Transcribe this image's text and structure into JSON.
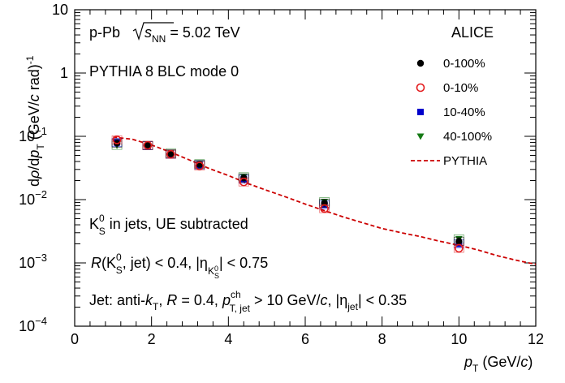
{
  "chart_data": {
    "type": "scatter",
    "x_scale": "linear",
    "y_scale": "log",
    "xlim": [
      0,
      12
    ],
    "ylim": [
      0.0001,
      10
    ],
    "x_ticks": [
      0,
      2,
      4,
      6,
      8,
      10,
      12
    ],
    "y_ticks": [
      {
        "value": 10,
        "base": "10",
        "exp": ""
      },
      {
        "value": 1,
        "base": "1",
        "exp": ""
      },
      {
        "value": 0.1,
        "base": "10",
        "exp": "−1"
      },
      {
        "value": 0.01,
        "base": "10",
        "exp": "−2"
      },
      {
        "value": 0.001,
        "base": "10",
        "exp": "−3"
      },
      {
        "value": 0.0001,
        "base": "10",
        "exp": "−4"
      }
    ],
    "xlabel": {
      "main": "p",
      "sub": "T",
      "unit_pre": " (GeV/",
      "unit_it": "c",
      "unit_post": ")"
    },
    "ylabel": {
      "t1": "d",
      "t2": "ρ",
      "t3": "/d",
      "t4": "p",
      "t4sub": "T",
      "t5": " (GeV/",
      "t6": "c",
      "t7": " rad)",
      "t7sup": "-1"
    },
    "experiment": "ALICE",
    "annotations": {
      "system": {
        "pre": "p-Pb ",
        "sqrt": "s",
        "sqrt_sub": "NN",
        "post": " = 5.02 TeV"
      },
      "model": "PYTHIA 8 BLC mode 0",
      "k0s": {
        "a": "K",
        "sup": "0",
        "sub": "S",
        "b": " in jets, UE subtracted"
      },
      "rcut": {
        "R": "R",
        "a": "(K",
        "sup": "0",
        "sub": "S",
        "b": ", jet) < 0.4, |η",
        "eta_sub": "K",
        "eta_subsup": "0",
        "eta_subsub": "S",
        "c": "| < 0.75"
      },
      "jet": {
        "a": "Jet: anti-",
        "k": "k",
        "ksub": "T",
        "b": ", ",
        "R": "R",
        "c": " = 0.4, ",
        "p": "p",
        "psup": "ch",
        "psub": "T, jet",
        "d": " > 10 GeV/",
        "cc": "c",
        "e": ", |η",
        "etasub": "jet",
        "f": "| < 0.35"
      }
    },
    "legend_position": "top-right",
    "series": [
      {
        "name": "0-100%",
        "marker": "filled-circle",
        "color": "#000000",
        "points": [
          [
            1.1,
            0.078
          ],
          [
            1.9,
            0.072
          ],
          [
            2.5,
            0.053
          ],
          [
            3.25,
            0.036
          ],
          [
            4.4,
            0.022
          ],
          [
            6.5,
            0.0088
          ],
          [
            10.0,
            0.0022
          ]
        ]
      },
      {
        "name": "0-10%",
        "marker": "open-circle",
        "color": "#e31a1c",
        "points": [
          [
            1.1,
            0.088
          ],
          [
            1.9,
            0.072
          ],
          [
            2.5,
            0.052
          ],
          [
            3.25,
            0.034
          ],
          [
            4.4,
            0.019
          ],
          [
            6.5,
            0.0072
          ],
          [
            10.0,
            0.0017
          ]
        ]
      },
      {
        "name": "10-40%",
        "marker": "filled-square",
        "color": "#0000cc",
        "points": [
          [
            1.1,
            0.08
          ],
          [
            1.9,
            0.071
          ],
          [
            2.5,
            0.052
          ],
          [
            3.25,
            0.035
          ],
          [
            4.4,
            0.021
          ],
          [
            6.5,
            0.0083
          ],
          [
            10.0,
            0.002
          ]
        ]
      },
      {
        "name": "40-100%",
        "marker": "filled-triangle-down",
        "color": "#157a15",
        "points": [
          [
            1.1,
            0.072
          ],
          [
            1.9,
            0.071
          ],
          [
            2.5,
            0.055
          ],
          [
            3.25,
            0.037
          ],
          [
            4.4,
            0.023
          ],
          [
            6.5,
            0.0093
          ],
          [
            10.0,
            0.0024
          ]
        ]
      },
      {
        "name": "PYTHIA",
        "marker": "dashed-line",
        "color": "#cc0000",
        "points": [
          [
            1.0,
            0.097
          ],
          [
            1.5,
            0.09
          ],
          [
            2.0,
            0.073
          ],
          [
            2.5,
            0.056
          ],
          [
            3.0,
            0.042
          ],
          [
            3.5,
            0.031
          ],
          [
            4.0,
            0.024
          ],
          [
            4.5,
            0.018
          ],
          [
            5.0,
            0.014
          ],
          [
            5.5,
            0.011
          ],
          [
            6.0,
            0.0085
          ],
          [
            6.5,
            0.0067
          ],
          [
            7.0,
            0.0053
          ],
          [
            7.5,
            0.0043
          ],
          [
            8.0,
            0.0035
          ],
          [
            8.5,
            0.003
          ],
          [
            9.0,
            0.0026
          ],
          [
            9.5,
            0.0022
          ],
          [
            10.0,
            0.0019
          ],
          [
            10.5,
            0.0016
          ],
          [
            11.0,
            0.0013
          ],
          [
            11.5,
            0.0011
          ],
          [
            12.0,
            0.00095
          ]
        ]
      }
    ]
  }
}
